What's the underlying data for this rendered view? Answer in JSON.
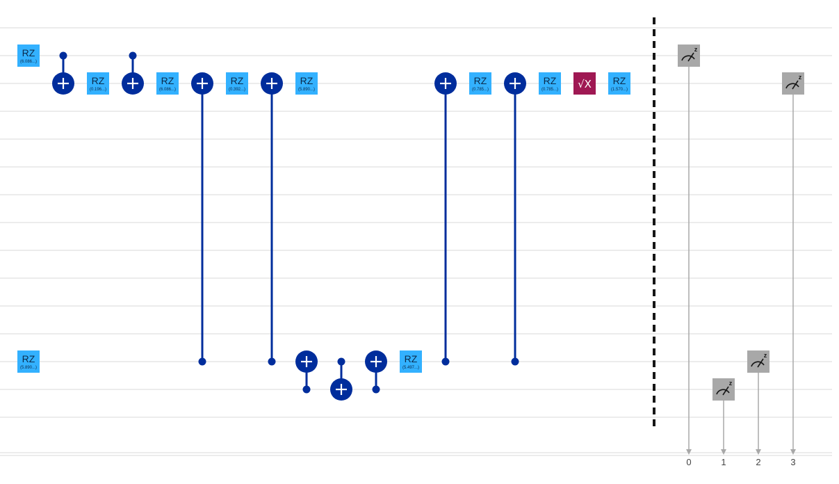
{
  "circuit": {
    "colors": {
      "wire": "#e6e6e6",
      "rz": "#33b1ff",
      "cx": "#002d9c",
      "sx": "#9f1853",
      "measure": "#a8a8a8",
      "classical_line": "#a8a8a8",
      "barrier": "#161616"
    },
    "rz_gates": [
      {
        "id": "rz-q0-c0",
        "label": "RZ",
        "param": "(6.086...)"
      },
      {
        "id": "rz-q1-c1",
        "label": "RZ",
        "param": "(0.196...)"
      },
      {
        "id": "rz-q1-c2",
        "label": "RZ",
        "param": "(6.086...)"
      },
      {
        "id": "rz-q1-c3",
        "label": "RZ",
        "param": "(0.392...)"
      },
      {
        "id": "rz-q1-c4",
        "label": "RZ",
        "param": "(5.890...)"
      },
      {
        "id": "rz-q1-c6",
        "label": "RZ",
        "param": "(0.785...)"
      },
      {
        "id": "rz-q1-c7",
        "label": "RZ",
        "param": "(0.785...)"
      },
      {
        "id": "rz-q1-c9",
        "label": "RZ",
        "param": "(1.570...)"
      },
      {
        "id": "rz-q11-c0",
        "label": "RZ",
        "param": "(5.890...)"
      },
      {
        "id": "rz-q11-c5",
        "label": "RZ",
        "param": "(5.497...)"
      }
    ],
    "sx_gates": [
      {
        "id": "sx-q1-c8",
        "label": "√X"
      }
    ],
    "measurements": [
      {
        "id": "meas-q0",
        "symbol": "z",
        "bit": "0"
      },
      {
        "id": "meas-q12",
        "symbol": "z",
        "bit": "1"
      },
      {
        "id": "meas-q11",
        "symbol": "z",
        "bit": "2"
      },
      {
        "id": "meas-q1",
        "symbol": "z",
        "bit": "3"
      }
    ]
  }
}
